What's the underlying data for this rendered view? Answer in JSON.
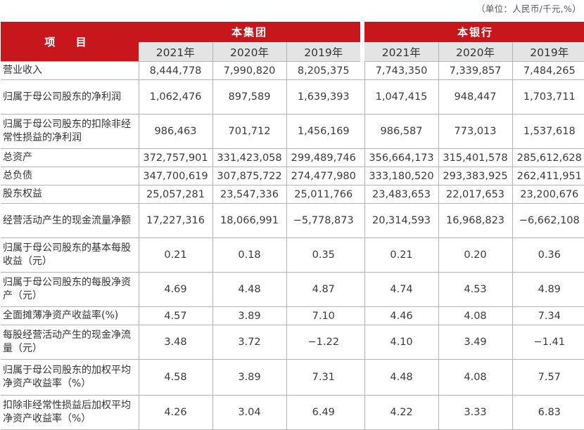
{
  "unit_note": "（单位：人民币/千元,%）",
  "header": {
    "item_label": "项  目",
    "group_label": "本集团",
    "bank_label": "本银行",
    "years": [
      "2021年",
      "2020年",
      "2019年"
    ]
  },
  "rows": [
    {
      "label": "营业收入",
      "group": [
        "8,444,778",
        "7,990,820",
        "8,205,375"
      ],
      "bank": [
        "7,743,350",
        "7,339,857",
        "7,484,265"
      ]
    },
    {
      "label": "归属于母公司股东的净利润",
      "group": [
        "1,062,476",
        "897,589",
        "1,639,393"
      ],
      "bank": [
        "1,047,415",
        "948,447",
        "1,703,711"
      ]
    },
    {
      "label": "归属于母公司股东的扣除非经常性损益的净利润",
      "group": [
        "986,463",
        "701,712",
        "1,456,169"
      ],
      "bank": [
        "986,587",
        "773,013",
        "1,537,618"
      ]
    },
    {
      "label": "总资产",
      "group": [
        "372,757,901",
        "331,423,058",
        "299,489,746"
      ],
      "bank": [
        "356,664,173",
        "315,401,578",
        "285,612,628"
      ]
    },
    {
      "label": "总负债",
      "group": [
        "347,700,619",
        "307,875,722",
        "274,477,980"
      ],
      "bank": [
        "333,180,520",
        "293,383,925",
        "262,411,951"
      ]
    },
    {
      "label": "股东权益",
      "group": [
        "25,057,281",
        "23,547,336",
        "25,011,766"
      ],
      "bank": [
        "23,483,653",
        "22,017,653",
        "23,200,676"
      ]
    },
    {
      "label": "经营活动产生的现金流量净额",
      "group": [
        "17,227,316",
        "18,066,991",
        "−5,778,873"
      ],
      "bank": [
        "20,314,593",
        "16,968,823",
        "−6,662,108"
      ]
    },
    {
      "label": "归属于母公司股东的基本每股收益（元）",
      "group": [
        "0.21",
        "0.18",
        "0.35"
      ],
      "bank": [
        "0.21",
        "0.20",
        "0.36"
      ]
    },
    {
      "label": "归属于母公司股东的每股净资产（元）",
      "group": [
        "4.69",
        "4.48",
        "4.87"
      ],
      "bank": [
        "4.74",
        "4.53",
        "4.89"
      ]
    },
    {
      "label": "全面摊薄净资产收益率(%)",
      "group": [
        "4.57",
        "3.89",
        "7.10"
      ],
      "bank": [
        "4.46",
        "4.08",
        "7.34"
      ]
    },
    {
      "label": "每股经营活动产生的现金净流量（元）",
      "group": [
        "3.48",
        "3.72",
        "−1.22"
      ],
      "bank": [
        "4.10",
        "3.49",
        "−1.41"
      ]
    },
    {
      "label": "归属于母公司股东的加权平均净资产收益率（%）",
      "group": [
        "4.58",
        "3.89",
        "7.31"
      ],
      "bank": [
        "4.48",
        "4.08",
        "7.57"
      ]
    },
    {
      "label": "扣除非经常性损益后加权平均净资产收益率（%）",
      "group": [
        "4.26",
        "3.04",
        "6.49"
      ],
      "bank": [
        "4.22",
        "3.33",
        "6.83"
      ]
    }
  ],
  "colors": {
    "header_red": "#c8161d",
    "year_bg": "#e4e4e4",
    "border": "#b3b3b3"
  }
}
